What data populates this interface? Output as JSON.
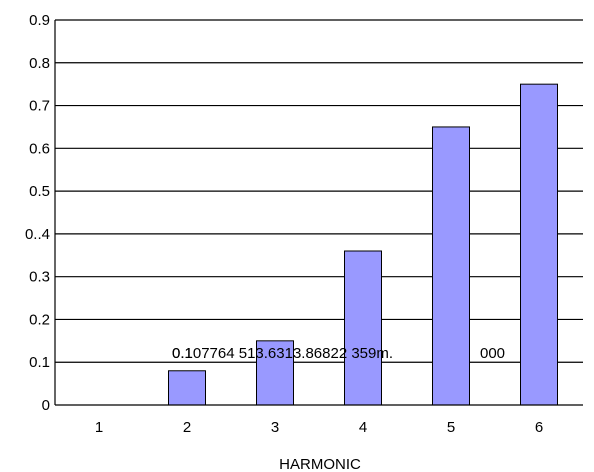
{
  "chart_data": {
    "type": "bar",
    "categories": [
      "1",
      "2",
      "3",
      "4",
      "5",
      "6"
    ],
    "values": [
      0,
      0.08,
      0.15,
      0.36,
      0.65,
      0.75
    ],
    "y_tick_labels": [
      "0",
      "0.1",
      "0.2",
      "0.3",
      "0..4",
      "0.5",
      "0.6",
      "0.7",
      "0.8",
      "0.9"
    ],
    "ylim": [
      0,
      0.9
    ],
    "xlabel": "HARMONIC",
    "ylabel": "",
    "title": "",
    "grid": true,
    "overlay_text_1": "0.107764 513.6313.86822 359m.",
    "overlay_text_2": "0.1",
    "overlay_text_3": "000",
    "colors": {
      "bar_fill": "#9999ff",
      "bar_stroke": "#000000",
      "grid": "#000000"
    }
  }
}
